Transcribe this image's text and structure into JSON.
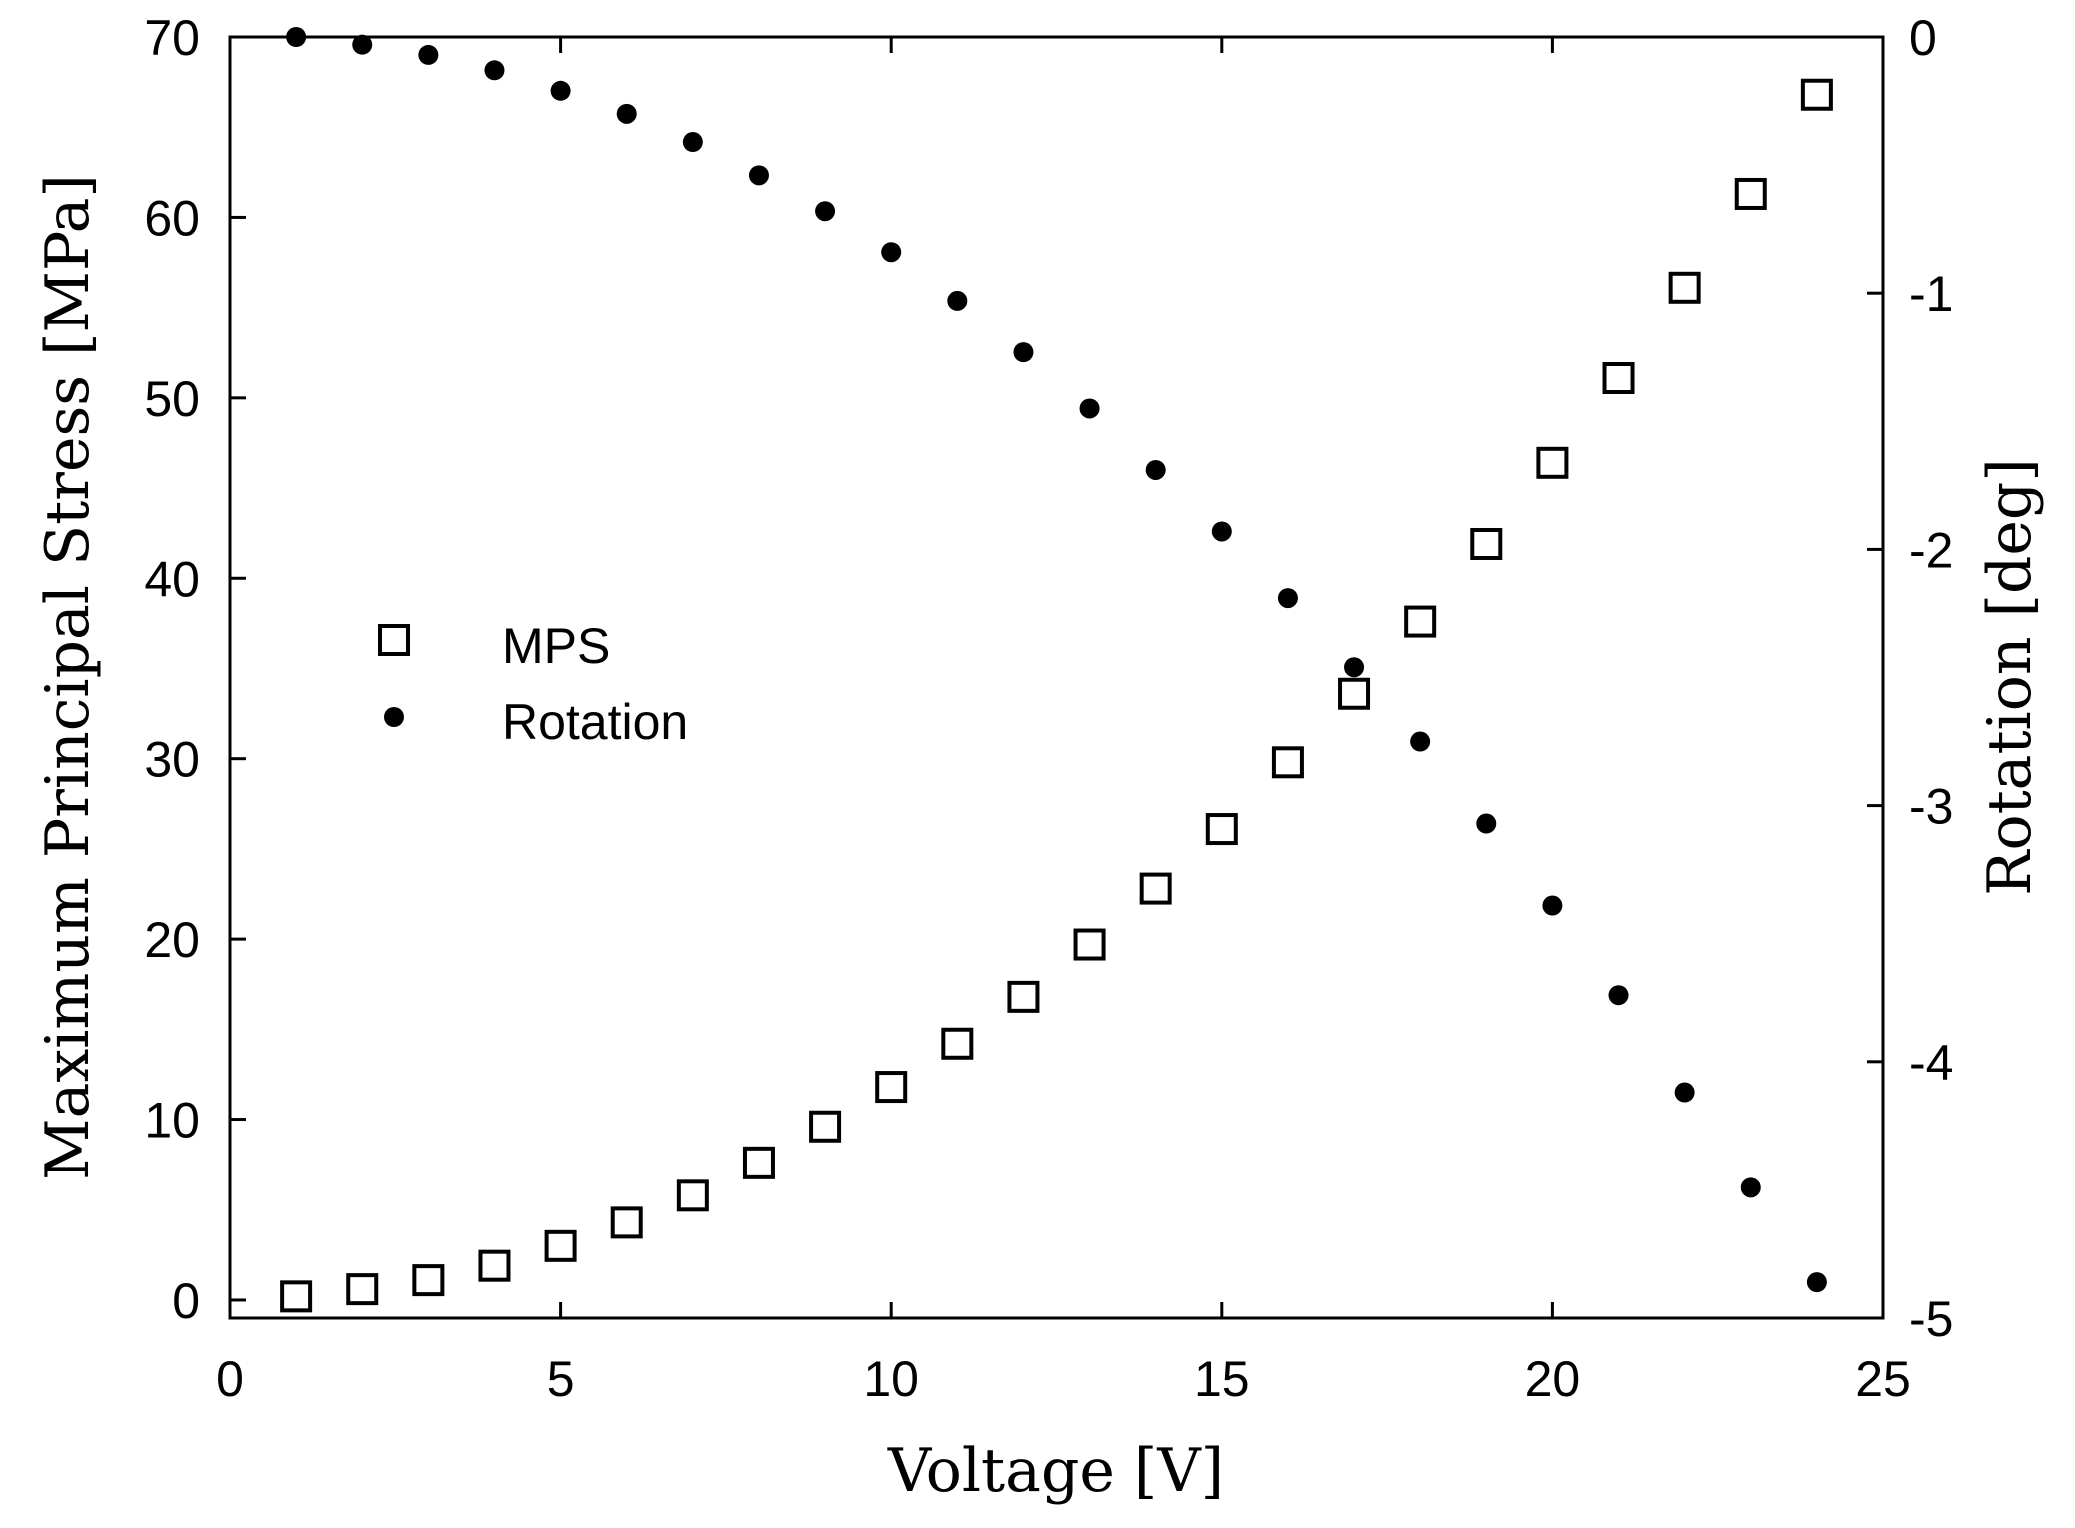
{
  "chart_data": {
    "type": "scatter",
    "title": "",
    "xlabel": "Voltage [V]",
    "ylabel_left": "Maximum Principal Stress [MPa]",
    "ylabel_right": "Rotation [deg]",
    "xlim": [
      0,
      25
    ],
    "ylim_left": [
      -1,
      70
    ],
    "ylim_right": [
      -5,
      0
    ],
    "x_ticks": [
      0,
      5,
      10,
      15,
      20,
      25
    ],
    "y_left_ticks": [
      0,
      10,
      20,
      30,
      40,
      50,
      60,
      70
    ],
    "y_right_ticks": [
      0,
      -1,
      -2,
      -3,
      -4,
      -5
    ],
    "grid": false,
    "legend_position": "center-left",
    "series": [
      {
        "name": "MPS",
        "axis": "left",
        "marker": "open-square",
        "x": [
          1,
          2,
          3,
          4,
          5,
          6,
          7,
          8,
          9,
          10,
          11,
          12,
          13,
          14,
          15,
          16,
          17,
          18,
          19,
          20,
          21,
          22,
          23,
          24
        ],
        "values": [
          0.2,
          0.6,
          1.1,
          1.9,
          3.0,
          4.3,
          5.8,
          7.6,
          9.6,
          11.8,
          14.2,
          16.8,
          19.7,
          22.8,
          26.1,
          29.8,
          33.6,
          37.6,
          41.9,
          46.4,
          51.1,
          56.1,
          61.3,
          66.8
        ]
      },
      {
        "name": "Rotation",
        "axis": "right",
        "marker": "filled-circle",
        "x": [
          1,
          2,
          3,
          4,
          5,
          6,
          7,
          8,
          9,
          10,
          11,
          12,
          13,
          14,
          15,
          16,
          17,
          18,
          19,
          20,
          21,
          22,
          23,
          24
        ],
        "values": [
          0.0,
          -0.03,
          -0.07,
          -0.13,
          -0.21,
          -0.3,
          -0.41,
          -0.54,
          -0.68,
          -0.84,
          -1.03,
          -1.23,
          -1.45,
          -1.69,
          -1.93,
          -2.19,
          -2.46,
          -2.75,
          -3.07,
          -3.39,
          -3.74,
          -4.12,
          -4.49,
          -4.86
        ]
      }
    ]
  }
}
